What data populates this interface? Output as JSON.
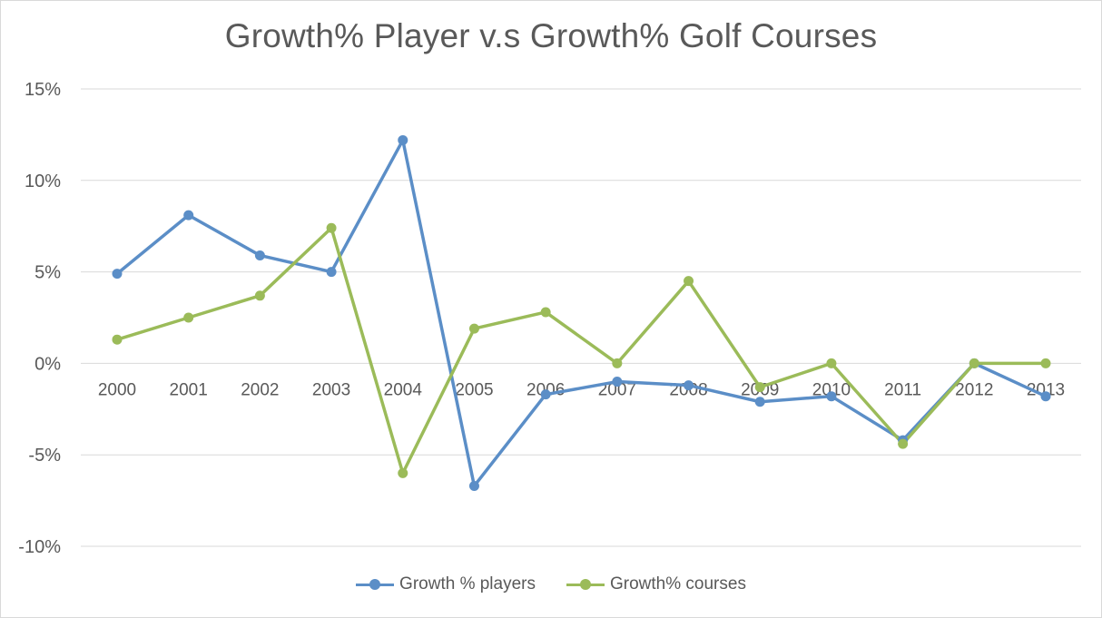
{
  "chart_data": {
    "type": "line",
    "title": "Growth% Player v.s Growth% Golf Courses",
    "categories": [
      "2000",
      "2001",
      "2002",
      "2003",
      "2004",
      "2005",
      "2006",
      "2007",
      "2008",
      "2009",
      "2010",
      "2011",
      "2012",
      "2013"
    ],
    "series": [
      {
        "name": "Growth % players",
        "color": "#5b8ec7",
        "values": [
          4.9,
          8.1,
          5.9,
          5.0,
          12.2,
          -6.7,
          -1.7,
          -1.0,
          -1.2,
          -2.1,
          -1.8,
          -4.2,
          0.0,
          -1.8
        ]
      },
      {
        "name": "Growth% courses",
        "color": "#9bbb59",
        "values": [
          1.3,
          2.5,
          3.7,
          7.4,
          -6.0,
          1.9,
          2.8,
          0.0,
          4.5,
          -1.3,
          0.0,
          -4.4,
          0.0,
          0.0
        ]
      }
    ],
    "yticks": [
      "15%",
      "10%",
      "5%",
      "0%",
      "-5%",
      "-10%"
    ],
    "ylim": [
      -10,
      15
    ],
    "grid": true,
    "legend_position": "bottom",
    "gridline_color": "#d9d9d9"
  }
}
